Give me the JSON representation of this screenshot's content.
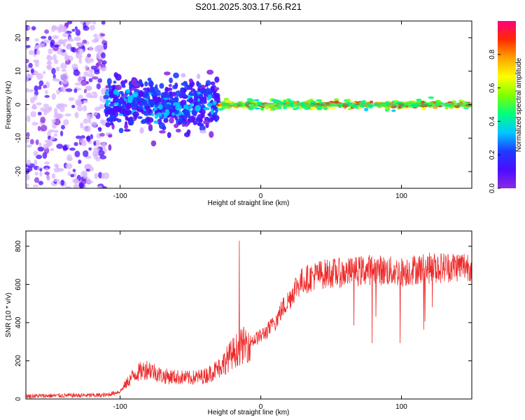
{
  "title": "S201.2025.303.17.56.R21",
  "chart_data": [
    {
      "type": "heatmap",
      "xlabel": "Height of straight line (km)",
      "ylabel": "Frequency (Hz)",
      "xlim": [
        -167,
        150
      ],
      "ylim": [
        -25,
        25
      ],
      "xticks": [
        -100,
        0,
        100
      ],
      "yticks": [
        -20,
        -10,
        0,
        10,
        20
      ],
      "colorbar": {
        "label": "Normalized spectral amplitude",
        "range": [
          0,
          1
        ],
        "ticks": [
          "0.0",
          "0.2",
          "0.4",
          "0.6",
          "0.8"
        ],
        "colormap": "rainbow",
        "colors": [
          "#ffffff",
          "#8a2be2",
          "#4b0cff",
          "#1e3cff",
          "#00c8ff",
          "#00ff7f",
          "#7fff00",
          "#ffff00",
          "#ffa500",
          "#ff2a00",
          "#ff0080"
        ]
      },
      "description_regions": [
        {
          "x_range": [
            -167,
            -110
          ],
          "freq_spread": 25,
          "intensity": 0.1
        },
        {
          "x_range": [
            -110,
            -30
          ],
          "freq_spread": 7,
          "intensity": 0.25
        },
        {
          "x_range": [
            -30,
            150
          ],
          "freq_spread": 1,
          "intensity": 0.6
        }
      ]
    },
    {
      "type": "line",
      "xlabel": "Height of straight line (km)",
      "ylabel": "SNR (10 * v/v)",
      "xlim": [
        -167,
        150
      ],
      "ylim": [
        0,
        880
      ],
      "xticks": [
        -100,
        0,
        100
      ],
      "yticks": [
        0,
        200,
        400,
        600,
        800
      ],
      "color": "#ee2a2a",
      "envelope": {
        "x": [
          -167,
          -140,
          -110,
          -100,
          -90,
          -80,
          -70,
          -60,
          -50,
          -40,
          -35,
          -30,
          -25,
          -20,
          -15,
          -10,
          -5,
          0,
          5,
          10,
          15,
          20,
          25,
          30,
          40,
          50,
          60,
          70,
          80,
          90,
          100,
          110,
          120,
          130,
          140,
          150
        ],
        "y": [
          15,
          18,
          20,
          40,
          130,
          160,
          120,
          115,
          110,
          120,
          140,
          160,
          200,
          240,
          270,
          290,
          310,
          330,
          360,
          400,
          470,
          520,
          590,
          620,
          650,
          660,
          660,
          670,
          680,
          670,
          665,
          680,
          685,
          690,
          695,
          700
        ]
      }
    }
  ]
}
